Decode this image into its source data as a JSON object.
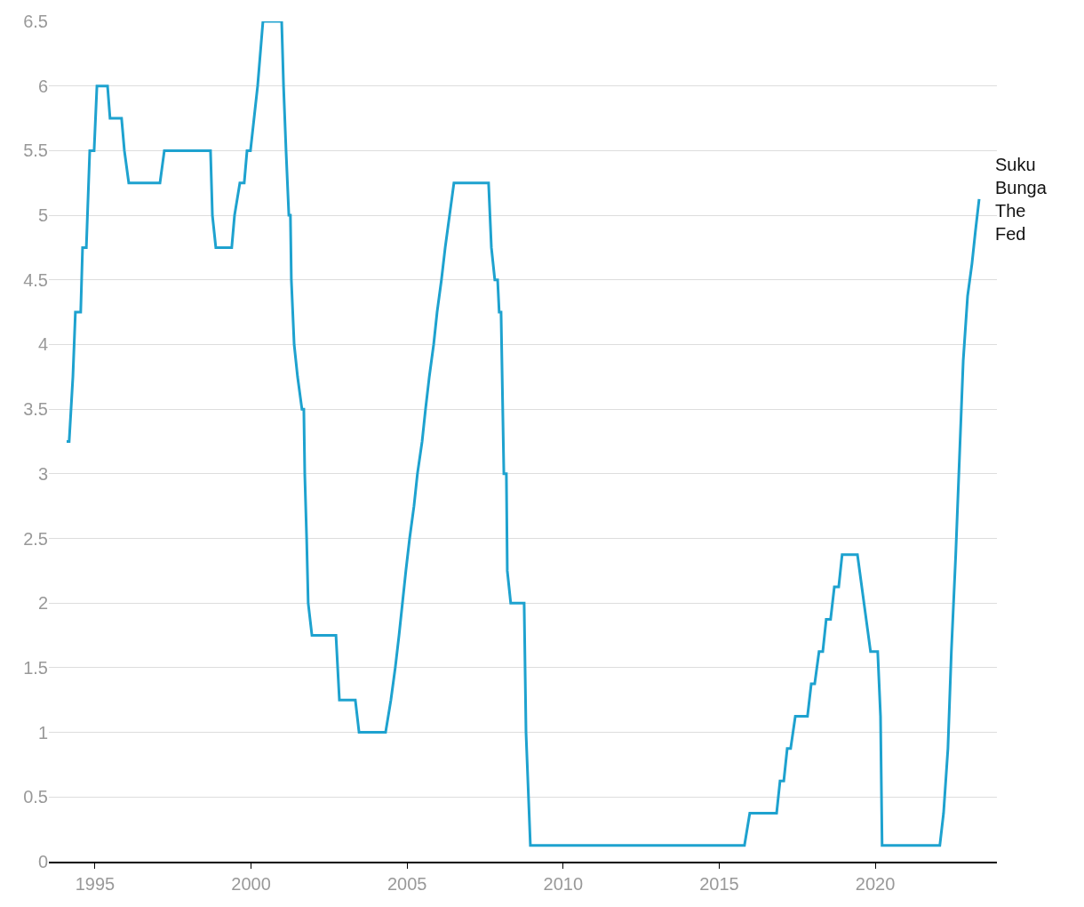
{
  "chart_data": {
    "type": "line",
    "xlim": [
      1993.52,
      2023.9
    ],
    "xticks": [
      1995,
      2000,
      2005,
      2010,
      2015,
      2020
    ],
    "ylim": [
      0,
      6.5
    ],
    "yticks": [
      0,
      0.5,
      1,
      1.5,
      2,
      2.5,
      3,
      3.5,
      4,
      4.5,
      5,
      5.5,
      6,
      6.5
    ],
    "grid": "y",
    "legend": false,
    "marker": "none",
    "line_style": "solid",
    "series": [
      {
        "name": "Suku Bunga The Fed",
        "color": "#1ea2cf",
        "x": [
          1994.09,
          1994.17,
          1994.29,
          1994.37,
          1994.54,
          1994.6,
          1994.72,
          1994.83,
          1994.97,
          1995.06,
          1995.4,
          1995.48,
          1995.85,
          1995.94,
          1996.08,
          1997.08,
          1997.22,
          1998.7,
          1998.76,
          1998.87,
          1999.38,
          1999.47,
          1999.64,
          1999.78,
          1999.87,
          1999.98,
          2000.21,
          2000.38,
          2000.98,
          2001.04,
          2001.12,
          2001.21,
          2001.26,
          2001.29,
          2001.38,
          2001.49,
          2001.63,
          2001.69,
          2001.72,
          2001.78,
          2001.83,
          2001.95,
          2002.72,
          2002.83,
          2003.34,
          2003.46,
          2004.31,
          2004.48,
          2004.62,
          2004.74,
          2004.85,
          2004.96,
          2005.08,
          2005.22,
          2005.33,
          2005.48,
          2005.59,
          2005.71,
          2005.85,
          2005.96,
          2006.1,
          2006.22,
          2006.36,
          2006.5,
          2007.61,
          2007.7,
          2007.81,
          2007.9,
          2007.95,
          2008.01,
          2008.1,
          2008.18,
          2008.21,
          2008.32,
          2008.75,
          2008.81,
          2008.95,
          2015.81,
          2015.98,
          2016.84,
          2016.95,
          2017.07,
          2017.18,
          2017.29,
          2017.44,
          2017.83,
          2017.95,
          2018.06,
          2018.2,
          2018.32,
          2018.43,
          2018.57,
          2018.69,
          2018.83,
          2018.94,
          2019.43,
          2019.71,
          2019.85,
          2020.08,
          2020.17,
          2020.22,
          2022.07,
          2022.19,
          2022.33,
          2022.44,
          2022.58,
          2022.7,
          2022.82,
          2022.96,
          2023.1,
          2023.21,
          2023.33
        ],
        "values": [
          3.25,
          3.25,
          3.75,
          4.25,
          4.25,
          4.75,
          4.75,
          5.5,
          5.5,
          6.0,
          6.0,
          5.75,
          5.75,
          5.5,
          5.25,
          5.25,
          5.5,
          5.5,
          5.0,
          4.75,
          4.75,
          5.0,
          5.25,
          5.25,
          5.5,
          5.5,
          6.0,
          6.5,
          6.5,
          6.0,
          5.5,
          5.0,
          5.0,
          4.5,
          4.0,
          3.75,
          3.5,
          3.5,
          3.0,
          2.5,
          2.0,
          1.75,
          1.75,
          1.25,
          1.25,
          1.0,
          1.0,
          1.25,
          1.5,
          1.75,
          2.0,
          2.25,
          2.5,
          2.75,
          3.0,
          3.25,
          3.5,
          3.75,
          4.0,
          4.25,
          4.5,
          4.75,
          5.0,
          5.25,
          5.25,
          4.75,
          4.5,
          4.5,
          4.25,
          4.25,
          3.0,
          3.0,
          2.25,
          2.0,
          2.0,
          1.0,
          0.125,
          0.125,
          0.375,
          0.375,
          0.625,
          0.625,
          0.875,
          0.875,
          1.125,
          1.125,
          1.375,
          1.375,
          1.625,
          1.625,
          1.875,
          1.875,
          2.125,
          2.125,
          2.375,
          2.375,
          1.875,
          1.625,
          1.625,
          1.125,
          0.125,
          0.125,
          0.375,
          0.875,
          1.625,
          2.375,
          3.125,
          3.875,
          4.375,
          4.625,
          4.875,
          5.125
        ]
      }
    ]
  }
}
